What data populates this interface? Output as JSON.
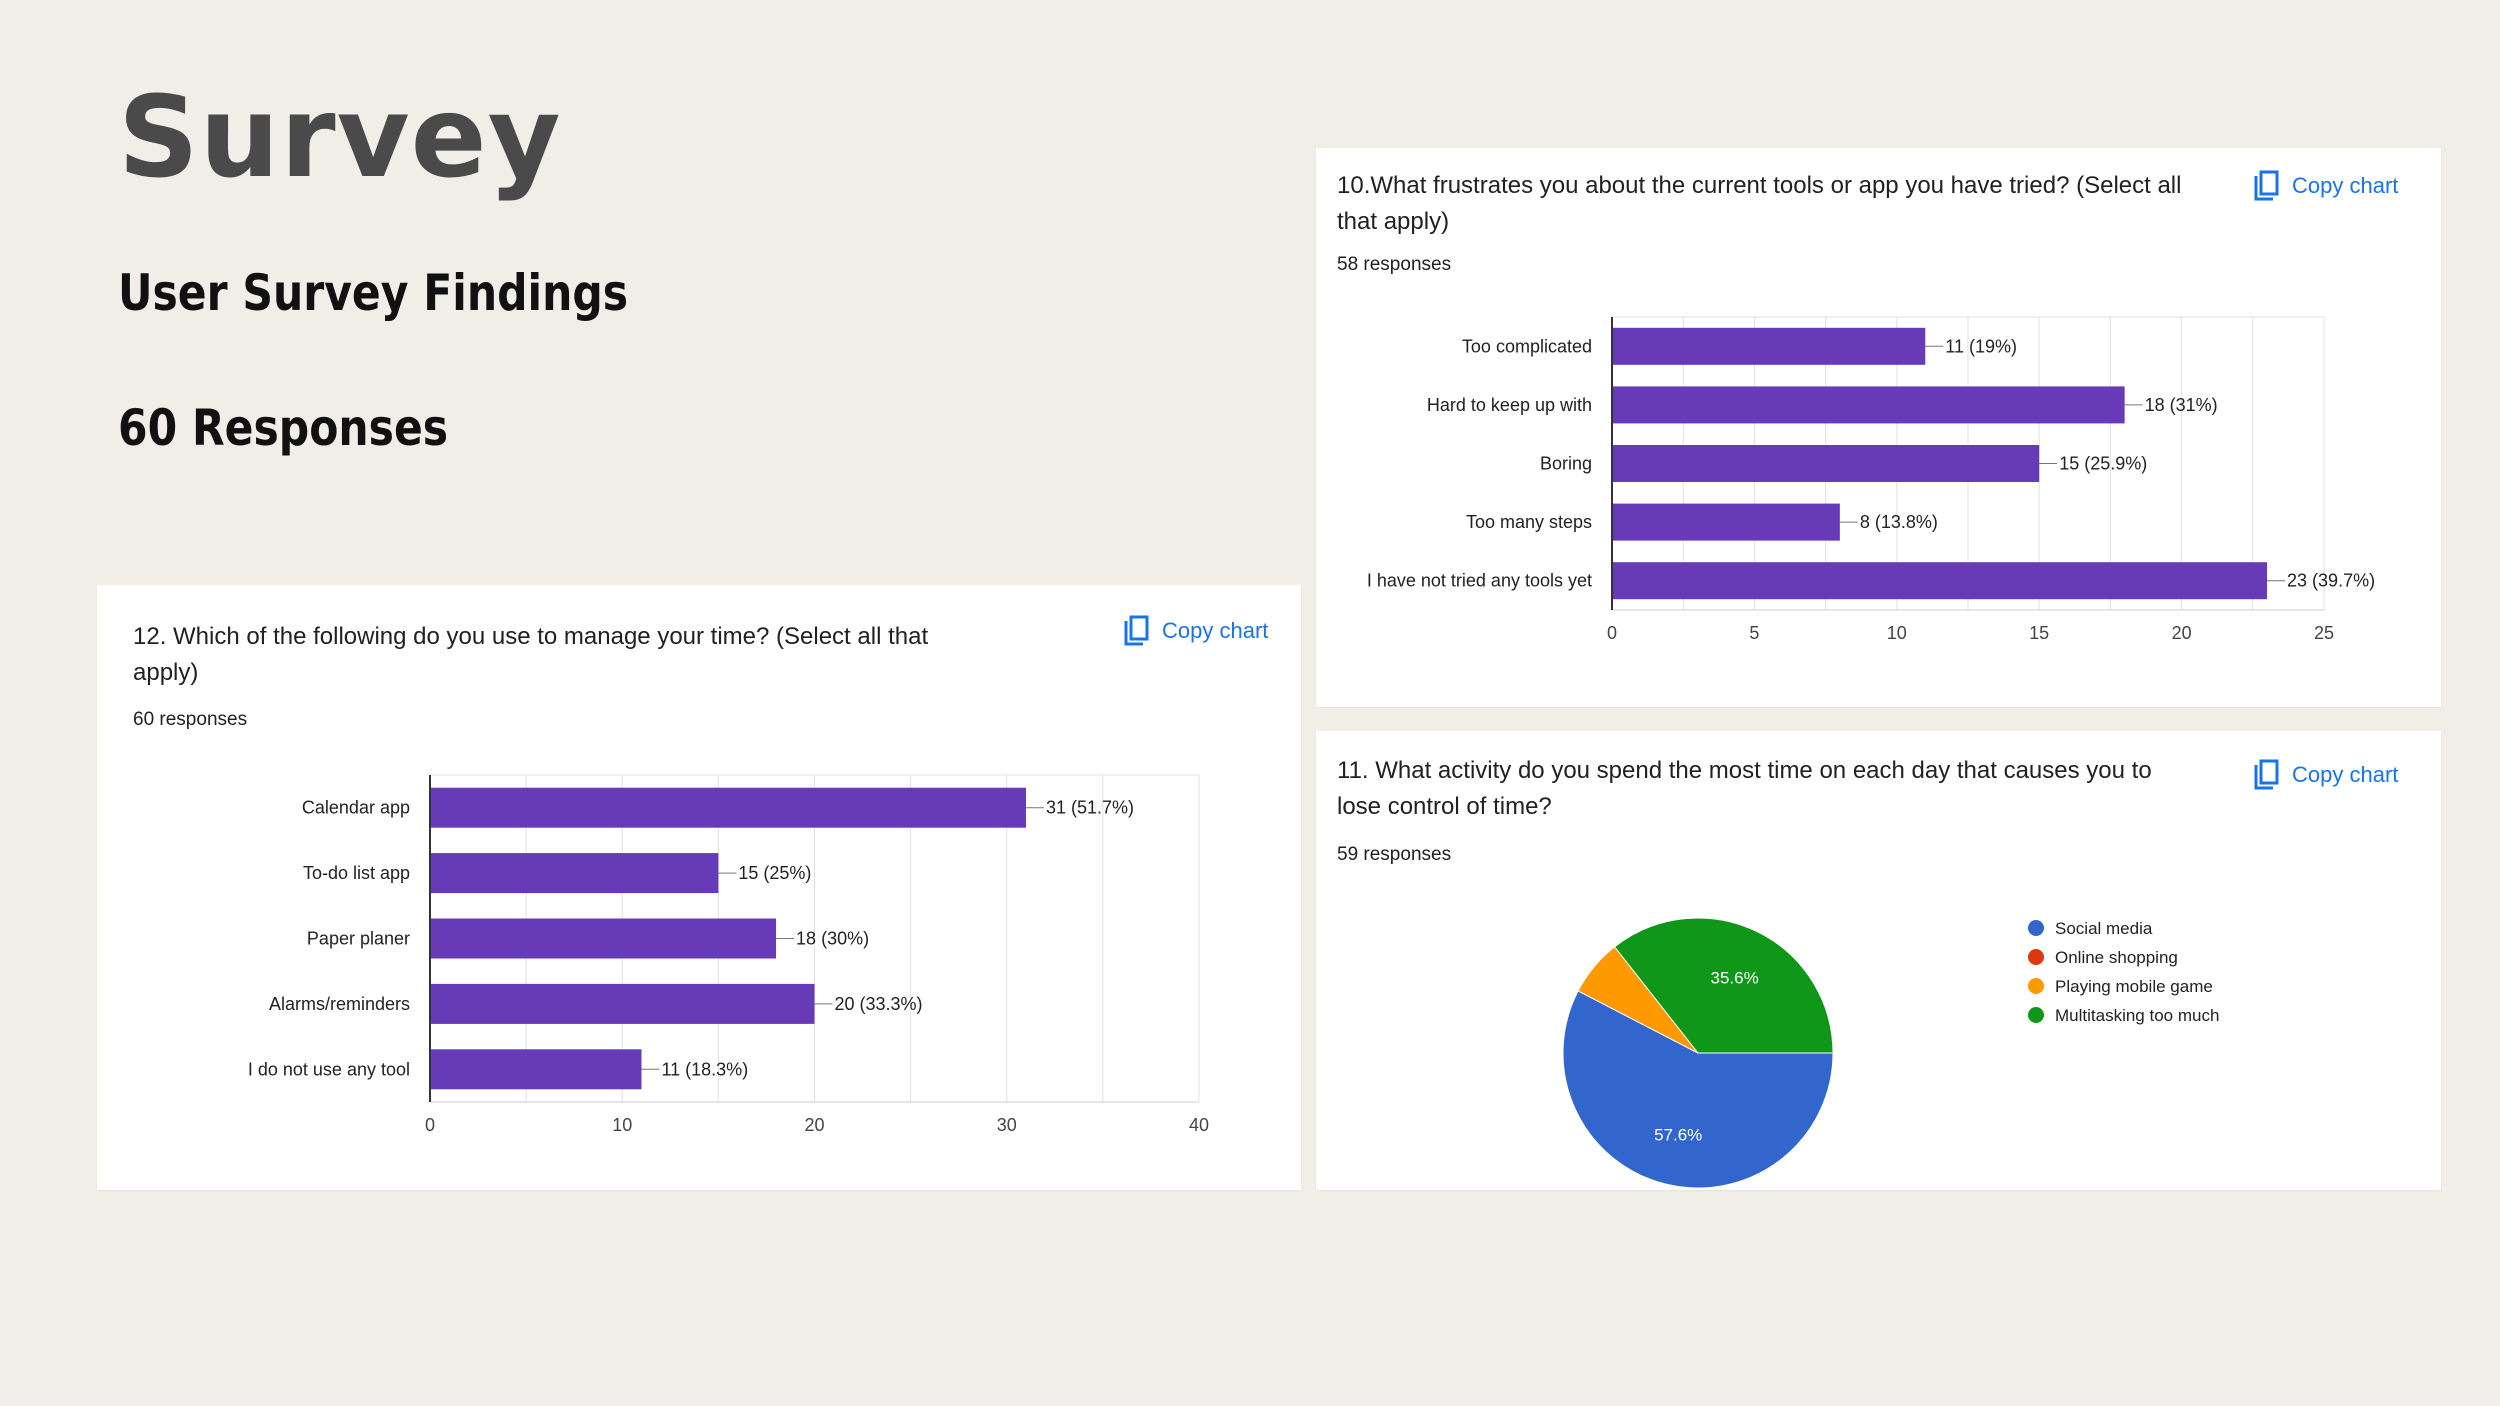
{
  "slide": {
    "title": "Survey",
    "subtitle": "User Survey Findings",
    "responses": "60 Responses"
  },
  "colors": {
    "bar": "#673ab7",
    "accent": "#1a73e8",
    "background": "#f1eee7"
  },
  "copy_chart_label": "Copy chart",
  "cards": {
    "q12": {
      "question_line1": "12. Which of the following do you use to manage your time?  (Select all that",
      "question_line2": "apply)",
      "responses": "60 responses"
    },
    "q10": {
      "question_line1": "10.What frustrates you about the current tools or app you have tried? (Select all",
      "question_line2": "that apply)",
      "responses": "58 responses"
    },
    "q11": {
      "question_line1": "11. What activity do you spend the most time on each day that causes you to",
      "question_line2": "lose control of time?",
      "responses": "59 responses"
    }
  },
  "chart_data": [
    {
      "id": "q12",
      "type": "bar",
      "orientation": "horizontal",
      "categories": [
        "Calendar app",
        "To-do list app",
        "Paper planer",
        "Alarms/reminders",
        "I do not use any tool"
      ],
      "values": [
        31,
        15,
        18,
        20,
        11
      ],
      "labels": [
        "31 (51.7%)",
        "15 (25%)",
        "18 (30%)",
        "20 (33.3%)",
        "11 (18.3%)"
      ],
      "xlim": [
        0,
        40
      ],
      "ticks": [
        0,
        10,
        20,
        30,
        40
      ],
      "grid": true
    },
    {
      "id": "q10",
      "type": "bar",
      "orientation": "horizontal",
      "categories": [
        "Too complicated",
        "Hard to keep up with",
        "Boring",
        "Too many steps",
        "I have not tried any tools yet"
      ],
      "values": [
        11,
        18,
        15,
        8,
        23
      ],
      "labels": [
        "11 (19%)",
        "18 (31%)",
        "15 (25.9%)",
        "8 (13.8%)",
        "23 (39.7%)"
      ],
      "xlim": [
        0,
        25
      ],
      "ticks": [
        0,
        5,
        10,
        15,
        20,
        25
      ],
      "grid": true
    },
    {
      "id": "q11",
      "type": "pie",
      "slices": [
        {
          "name": "Social media",
          "percent": 57.6,
          "label": "57.6%",
          "color": "#3366cc"
        },
        {
          "name": "Online shopping",
          "percent": 0,
          "label": "",
          "color": "#dc3912"
        },
        {
          "name": "Playing mobile game",
          "percent": 6.8,
          "label": "",
          "color": "#ff9900"
        },
        {
          "name": "Multitasking too much",
          "percent": 35.6,
          "label": "35.6%",
          "color": "#109618"
        }
      ],
      "legend": "right"
    }
  ]
}
